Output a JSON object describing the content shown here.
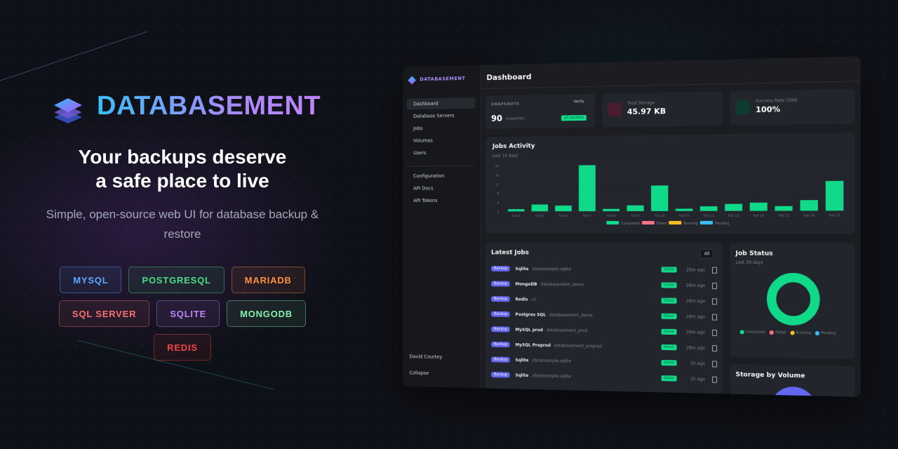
{
  "brand": {
    "name": "DATABASEMENT"
  },
  "hero": {
    "headline": [
      "Your backups deserve",
      "a safe place to live"
    ],
    "subtitle": "Simple, open-source web UI for database backup & restore"
  },
  "badges": [
    {
      "label": "MYSQL",
      "color": "#60a5fa"
    },
    {
      "label": "POSTGRESQL",
      "color": "#4ade80"
    },
    {
      "label": "MARIADB",
      "color": "#fb923c"
    },
    {
      "label": "SQL SERVER",
      "color": "#f87171"
    },
    {
      "label": "SQLITE",
      "color": "#c084fc"
    },
    {
      "label": "MONGODB",
      "color": "#86efac"
    },
    {
      "label": "REDIS",
      "color": "#ef4444"
    }
  ],
  "dashboard": {
    "sidebar": {
      "brand": "DATABASEMENT",
      "nav": [
        "Dashboard",
        "Database Servers",
        "Jobs",
        "Volumes",
        "Users"
      ],
      "nav2": [
        "Configuration",
        "API Docs",
        "API Tokens"
      ],
      "user": "David Courtey",
      "collapse": "Collapse"
    },
    "title": "Dashboard",
    "stats": {
      "snapshots": {
        "label": "SNAPSHOTS",
        "verify": "Verify",
        "count": "90",
        "unit": "snapshots",
        "status": "all verified"
      },
      "storage": {
        "label": "Total Storage",
        "value": "45.97 KB"
      },
      "success": {
        "label": "Success Rate (30d)",
        "value": "100%"
      }
    },
    "latest_jobs": {
      "title": "Latest Jobs",
      "filter": "All",
      "rows": [
        [
          "Backup",
          "Sqlite",
          "/data/sample.sqlite",
          "Done",
          "29m ago"
        ],
        [
          "Backup",
          "MongoDB",
          "databasement_demo",
          "Done",
          "28m ago"
        ],
        [
          "Backup",
          "Redis",
          "v1",
          "Done",
          "28m ago"
        ],
        [
          "Backup",
          "Postgres SQL",
          "databasement_demo",
          "Done",
          "28m ago"
        ],
        [
          "Backup",
          "MySQL prod",
          "databasement_prod",
          "Done",
          "29m ago"
        ],
        [
          "Backup",
          "MySQL Preprod",
          "databasement_preprod",
          "Done",
          "28m ago"
        ],
        [
          "Backup",
          "Sqlite",
          "/data/sample.sqlite",
          "Done",
          "2h ago"
        ],
        [
          "Backup",
          "Sqlite",
          "/data/sample.sqlite",
          "Done",
          "2h ago"
        ]
      ]
    },
    "job_status": {
      "title": "Job Status",
      "subtitle": "Last 30 days",
      "legend": [
        {
          "name": "Completed",
          "color": "#10d98a"
        },
        {
          "name": "Failed",
          "color": "#fb7185"
        },
        {
          "name": "Running",
          "color": "#fbbf24"
        },
        {
          "name": "Pending",
          "color": "#38bdf8"
        }
      ]
    },
    "storage_by_volume": {
      "title": "Storage by Volume"
    }
  },
  "chart_data": {
    "type": "bar",
    "title": "Jobs Activity",
    "subtitle": "Last 14 days",
    "categories": [
      "Feb 4",
      "Feb 5",
      "Feb 6",
      "Feb 7",
      "Feb 8",
      "Feb 9",
      "Feb 10",
      "Feb 11",
      "Feb 12",
      "Feb 13",
      "Feb 14",
      "Feb 15",
      "Feb 16",
      "Feb 17"
    ],
    "series": [
      {
        "name": "Completed",
        "color": "#10d98a",
        "values": [
          1,
          3,
          2.5,
          20,
          1,
          2.5,
          11,
          1,
          2,
          3,
          3.5,
          2,
          4.5,
          12.5
        ]
      },
      {
        "name": "Failed",
        "color": "#fb7185",
        "values": [
          0,
          0,
          0,
          0,
          0,
          0,
          0,
          0,
          0,
          0,
          0,
          0,
          0,
          0
        ]
      },
      {
        "name": "Running",
        "color": "#fbbf24",
        "values": [
          0,
          0,
          0,
          0,
          0,
          0,
          0,
          0,
          0,
          0,
          0,
          0,
          0,
          0
        ]
      },
      {
        "name": "Pending",
        "color": "#38bdf8",
        "values": [
          0,
          0,
          0,
          0,
          0,
          0,
          0,
          0,
          0,
          0,
          0,
          0,
          0,
          0
        ]
      }
    ],
    "ylim": [
      0,
      20
    ],
    "yticks": [
      0,
      4,
      8,
      12,
      16,
      20
    ],
    "stacked": true
  }
}
